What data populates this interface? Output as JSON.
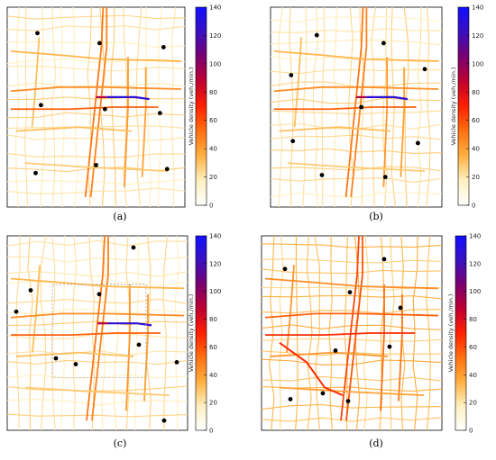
{
  "chart_data": [
    {
      "type": "heatmap",
      "panel": "(a)",
      "colorbar": {
        "label": "Vehicle density (veh./min.)",
        "min": 0,
        "max": 140,
        "ticks": [
          0,
          20,
          40,
          60,
          80,
          100,
          120,
          140
        ]
      },
      "colorscale": [
        "#ffffff",
        "#fff0c0",
        "#ffb040",
        "#ff7010",
        "#ff2000",
        "#c00030",
        "#7a0070",
        "#3a10c0",
        "#1010ff"
      ],
      "markers": 9,
      "selection_box": false
    },
    {
      "type": "heatmap",
      "panel": "(b)",
      "colorbar": {
        "label": "Vehicle density (veh./min.)",
        "min": 0,
        "max": 140,
        "ticks": [
          0,
          20,
          40,
          60,
          80,
          100,
          120,
          140
        ]
      },
      "colorscale": [
        "#ffffff",
        "#fff0c0",
        "#ffb040",
        "#ff7010",
        "#ff2000",
        "#c00030",
        "#7a0070",
        "#3a10c0",
        "#1010ff"
      ],
      "markers": 9,
      "selection_box": false
    },
    {
      "type": "heatmap",
      "panel": "(c)",
      "colorbar": {
        "label": "Vehicle density (veh./min.)",
        "min": 0,
        "max": 140,
        "ticks": [
          0,
          20,
          40,
          60,
          80,
          100,
          120,
          140
        ]
      },
      "colorscale": [
        "#ffffff",
        "#fff0c0",
        "#ffb040",
        "#ff7010",
        "#ff2000",
        "#c00030",
        "#7a0070",
        "#3a10c0",
        "#1010ff"
      ],
      "markers": 9,
      "selection_box": true
    },
    {
      "type": "heatmap",
      "panel": "(d)",
      "colorbar": {
        "label": "Vehicle density (veh./min.)",
        "min": 0,
        "max": 140,
        "ticks": [
          0,
          20,
          40,
          60,
          80,
          100,
          120,
          140
        ]
      },
      "colorscale": [
        "#ffffff",
        "#fff0c0",
        "#ffb040",
        "#ff7010",
        "#ff2000",
        "#c00030",
        "#7a0070",
        "#3a10c0",
        "#1010ff"
      ],
      "markers": 9,
      "selection_box": false
    }
  ]
}
